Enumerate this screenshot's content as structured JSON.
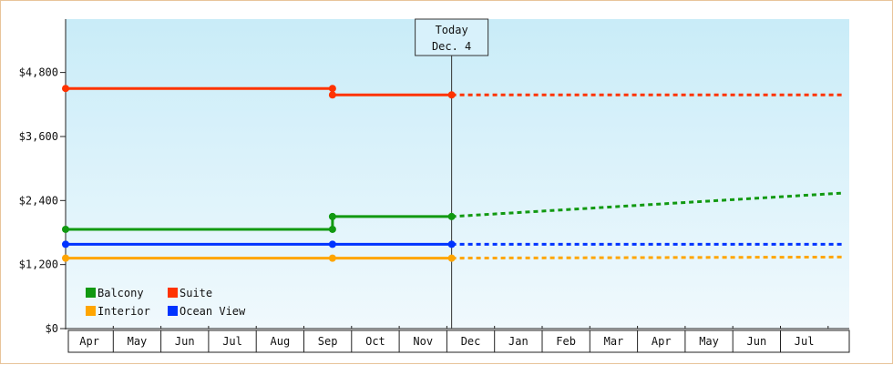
{
  "chart_data": {
    "type": "line",
    "ylim": [
      0,
      5800
    ],
    "y_ticks": [
      {
        "value": 0,
        "label": "$0"
      },
      {
        "value": 1200,
        "label": "$1,200"
      },
      {
        "value": 2400,
        "label": "$2,400"
      },
      {
        "value": 3600,
        "label": "$3,600"
      },
      {
        "value": 4800,
        "label": "$4,800"
      }
    ],
    "months": [
      "Apr",
      "May",
      "Jun",
      "Jul",
      "Aug",
      "Sep",
      "Oct",
      "Nov",
      "Dec",
      "Jan",
      "Feb",
      "Mar",
      "Apr",
      "May",
      "Jun",
      "Jul"
    ],
    "today": {
      "line1": "Today",
      "line2": "Dec. 4",
      "x": 8.1
    },
    "x_end": 16.3,
    "legend": {
      "placement": "bottom-left"
    },
    "series": [
      {
        "name": "Balcony",
        "color": "#119911",
        "history": [
          [
            0,
            1860
          ],
          [
            5.6,
            1860
          ],
          [
            5.6,
            2100
          ],
          [
            8.1,
            2100
          ]
        ],
        "markers": [
          [
            0,
            1860
          ],
          [
            5.6,
            1860
          ],
          [
            5.6,
            2100
          ],
          [
            8.1,
            2100
          ]
        ],
        "forecast": [
          [
            8.1,
            2100
          ],
          [
            16.3,
            2540
          ]
        ]
      },
      {
        "name": "Suite",
        "color": "#ff3300",
        "history": [
          [
            0,
            4500
          ],
          [
            5.6,
            4500
          ],
          [
            5.6,
            4380
          ],
          [
            8.1,
            4380
          ]
        ],
        "markers": [
          [
            0,
            4500
          ],
          [
            5.6,
            4500
          ],
          [
            5.6,
            4380
          ],
          [
            8.1,
            4380
          ]
        ],
        "forecast": [
          [
            8.1,
            4380
          ],
          [
            16.3,
            4380
          ]
        ]
      },
      {
        "name": "Interior",
        "color": "#ffa500",
        "history": [
          [
            0,
            1320
          ],
          [
            8.1,
            1320
          ]
        ],
        "markers": [
          [
            0,
            1320
          ],
          [
            5.6,
            1320
          ],
          [
            8.1,
            1320
          ]
        ],
        "forecast": [
          [
            8.1,
            1320
          ],
          [
            16.3,
            1340
          ]
        ]
      },
      {
        "name": "Ocean View",
        "color": "#0033ff",
        "history": [
          [
            0,
            1580
          ],
          [
            8.1,
            1580
          ]
        ],
        "markers": [
          [
            0,
            1580
          ],
          [
            5.6,
            1580
          ],
          [
            8.1,
            1580
          ]
        ],
        "forecast": [
          [
            8.1,
            1580
          ],
          [
            16.3,
            1580
          ]
        ]
      }
    ]
  }
}
